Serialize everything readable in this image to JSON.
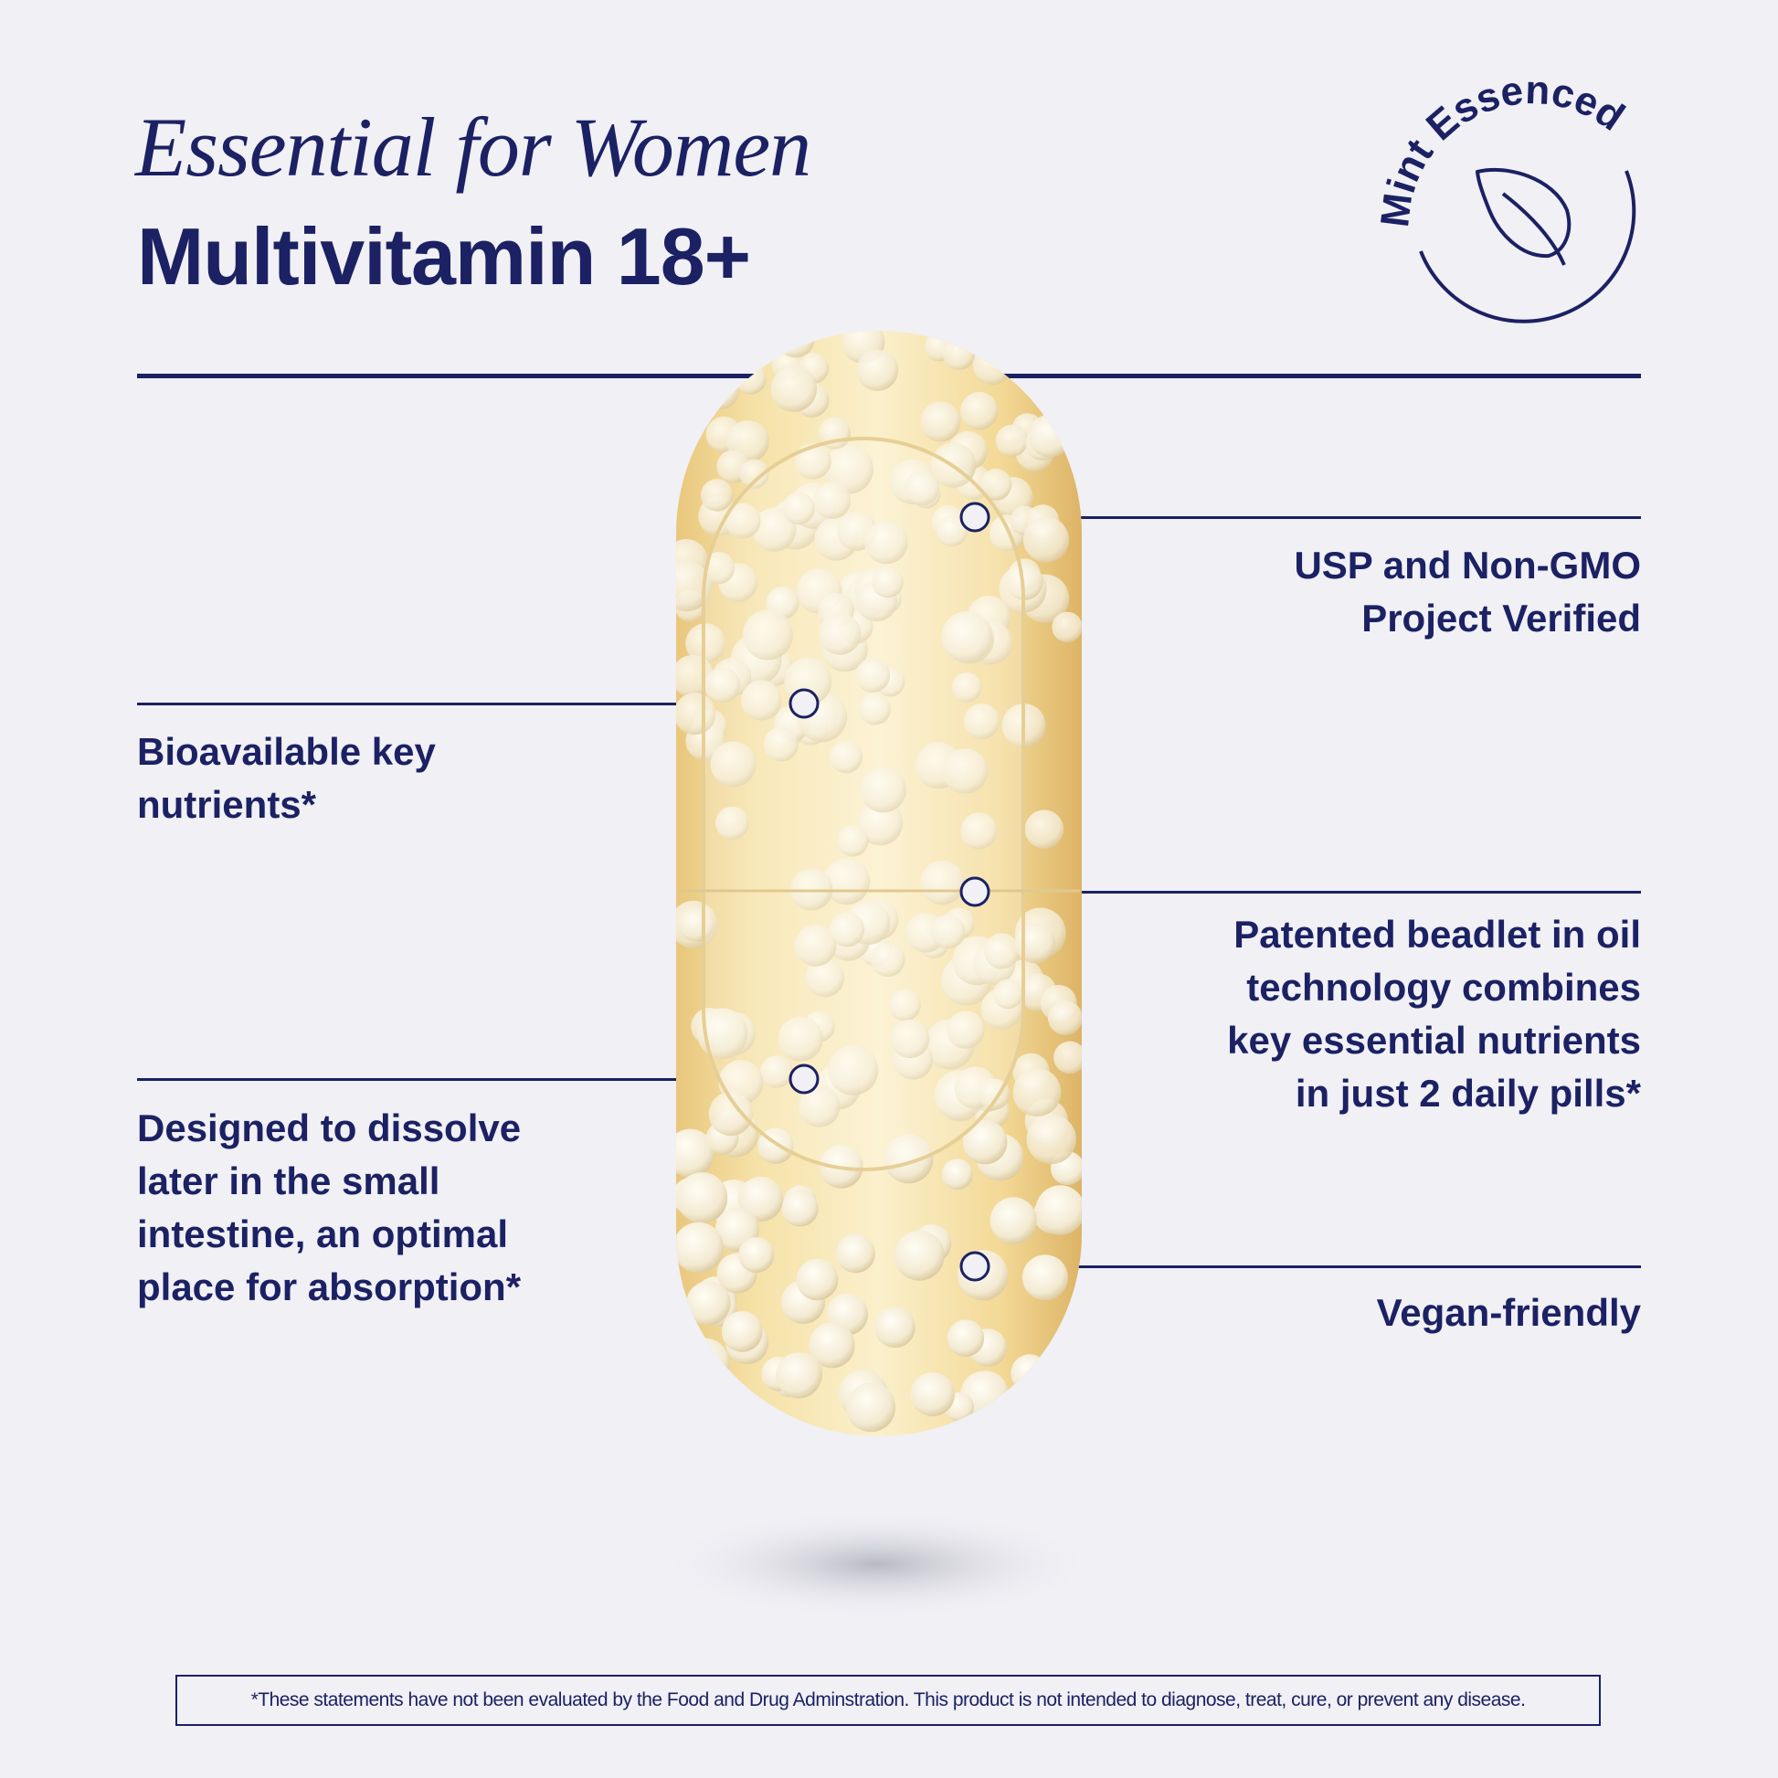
{
  "header": {
    "script_title": "Essential for Women",
    "product_title": "Multivitamin 18+"
  },
  "badge": {
    "text": "Mint Essenced",
    "icon": "mint-leaf-icon"
  },
  "callouts": {
    "usp": "USP and Non-GMO\nProject Verified",
    "bioavailable": "Bioavailable key\nnutrients*",
    "beadlet": "Patented beadlet in oil\ntechnology combines\nkey essential nutrients\nin just 2 daily pills*",
    "dissolve": "Designed to dissolve\nlater in the small\nintestine, an optimal\nplace for absorption*",
    "vegan": "Vegan-friendly"
  },
  "disclaimer": "*These statements have not been evaluated by the Food and Drug Adminstration. This product is not intended to diagnose, treat, cure, or prevent any disease.",
  "colors": {
    "brand_navy": "#1b2163",
    "background": "#f0f0f5",
    "capsule_oil": "#f3dc9e"
  }
}
